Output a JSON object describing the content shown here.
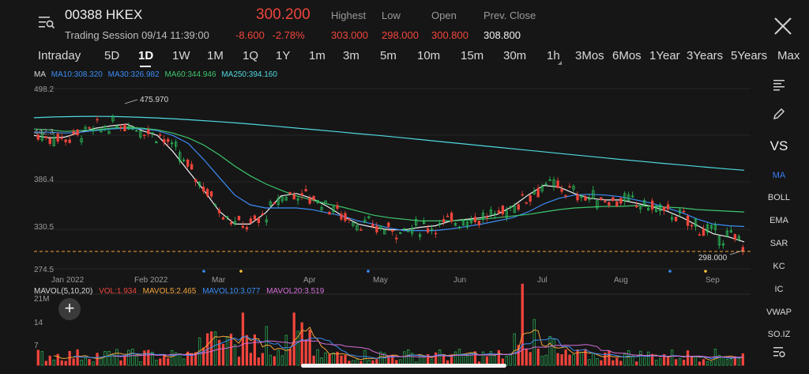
{
  "header": {
    "ticker": "00388 HKEX",
    "session": "Trading Session 09/14 11:39:00",
    "price": "300.200",
    "change": "-8.600",
    "change_pct": "-2.78%",
    "stats": {
      "highest_label": "Highest",
      "highest": "303.000",
      "low_label": "Low",
      "low": "298.000",
      "open_label": "Open",
      "open": "300.800",
      "prev_close_label": "Prev. Close",
      "prev_close": "308.800"
    }
  },
  "tabs": [
    "Intraday",
    "5D",
    "1D",
    "1W",
    "1M",
    "1Q",
    "1Y",
    "1m",
    "3m",
    "5m",
    "10m",
    "15m",
    "30m",
    "1h",
    "3Mos",
    "6Mos",
    "1Year",
    "3Years",
    "5Years",
    "Max"
  ],
  "active_tab": "1D",
  "ma_legend": {
    "label": "MA",
    "ma10": "MA10:308.320",
    "ma30": "MA30:326.982",
    "ma60": "MA60:344.946",
    "ma250": "MA250:394.160"
  },
  "price_axis": [
    "498.2",
    "442.3",
    "386.4",
    "330.5",
    "274.5"
  ],
  "annotations": {
    "high": "475.970",
    "low": "298.000"
  },
  "months": [
    "Jan 2022",
    "Feb 2022",
    "Mar",
    "Apr",
    "May",
    "Jun",
    "Jul",
    "Aug",
    "Sep"
  ],
  "vol_legend": {
    "label": "MAVOL(5,10,20)",
    "vol": "VOL:1.934",
    "mavol5": "MAVOL5:2.465",
    "mavol10": "MAVOL10:3.077",
    "mavol20": "MAVOL20:3.519"
  },
  "vol_axis": [
    "21M",
    "14",
    "7"
  ],
  "side_tools": {
    "vs": "VS",
    "indicators": [
      "MA",
      "BOLL",
      "EMA",
      "SAR",
      "KC",
      "IC",
      "VWAP",
      "SO.IZ"
    ],
    "active": "MA"
  },
  "add_label": "+",
  "colors": {
    "up": "#2bbd5a",
    "down": "#f0453c",
    "ma10": "#f0f0f0",
    "ma30": "#3b8cf4",
    "ma60": "#3ec46d",
    "ma250": "#4fd8e0",
    "mavol5": "#f3a33a",
    "mavol10": "#3b8cf4",
    "mavol20": "#d46fd8"
  },
  "chart_data": {
    "type": "candlestick",
    "x_range": [
      "Jan 2022",
      "Sep 2022"
    ],
    "y_range": [
      274.5,
      498.2
    ],
    "series": [
      {
        "name": "MA10",
        "values": [
          440,
          437,
          438,
          444,
          449,
          452,
          454,
          446,
          440,
          420,
          396,
          372,
          346,
          330,
          330,
          344,
          365,
          368,
          362,
          352,
          340,
          330,
          326,
          323,
          323,
          326,
          328,
          334,
          336,
          338,
          342,
          352,
          366,
          378,
          376,
          368,
          362,
          360,
          360,
          356,
          352,
          346,
          338,
          328,
          318,
          314,
          308
        ]
      },
      {
        "name": "MA30",
        "values": [
          444,
          444,
          443,
          444,
          446,
          448,
          449,
          448,
          446,
          440,
          430,
          410,
          388,
          366,
          354,
          350,
          350,
          350,
          348,
          344,
          340,
          334,
          330,
          325,
          322,
          322,
          322,
          324,
          327,
          330,
          334,
          338,
          345,
          355,
          362,
          366,
          367,
          366,
          364,
          360,
          356,
          350,
          344,
          336,
          330,
          328,
          327
        ]
      },
      {
        "name": "MA60",
        "values": [
          448,
          447,
          445,
          446,
          447,
          449,
          450,
          449,
          447,
          443,
          437,
          428,
          416,
          402,
          390,
          380,
          372,
          365,
          360,
          355,
          351,
          346,
          341,
          338,
          336,
          334,
          334,
          334,
          335,
          336,
          338,
          340,
          342,
          345,
          348,
          350,
          351,
          352,
          352,
          353,
          352,
          351,
          350,
          348,
          347,
          346,
          345
        ]
      },
      {
        "name": "MA250",
        "values": [
          462,
          463,
          463.5,
          463.8,
          463.5,
          462.8,
          461.8,
          460.5,
          459,
          457.3,
          455.5,
          453.5,
          451.3,
          449,
          446.8,
          444.5,
          442.2,
          440,
          437.6,
          435,
          432.5,
          430,
          427.5,
          425,
          422.5,
          420,
          417.5,
          415,
          412.5,
          410,
          407.7,
          405.4,
          403.2,
          401,
          398.8,
          396.8
        ]
      }
    ]
  }
}
